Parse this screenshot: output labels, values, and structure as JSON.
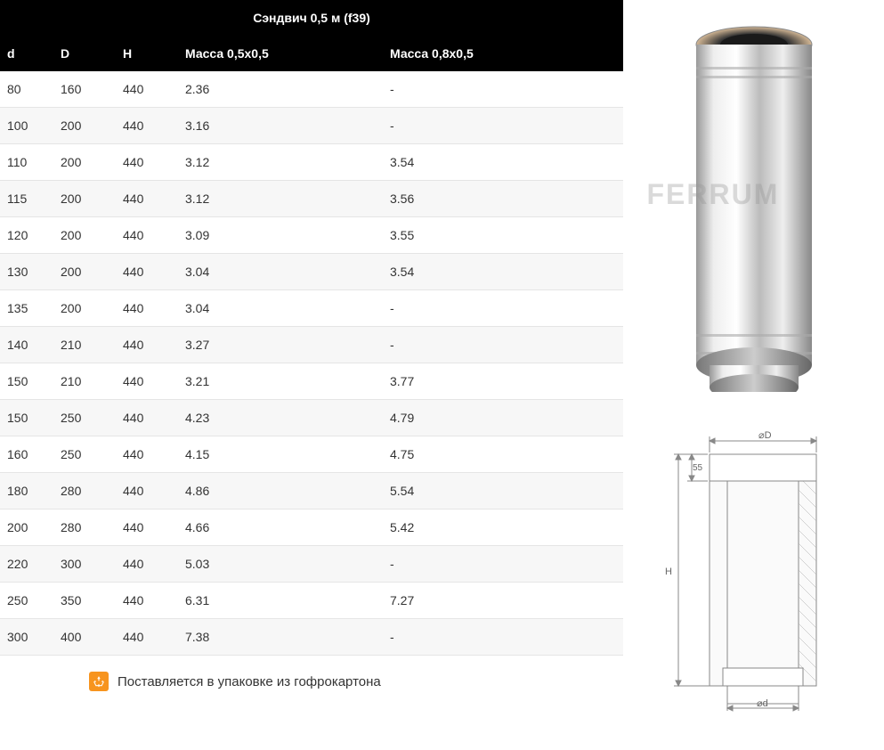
{
  "table": {
    "title": "Сэндвич 0,5 м (f39)",
    "columns": [
      "d",
      "D",
      "Н",
      "Масса 0,5x0,5",
      "Масса 0,8x0,5"
    ],
    "rows": [
      [
        "80",
        "160",
        "440",
        "2.36",
        "-"
      ],
      [
        "100",
        "200",
        "440",
        "3.16",
        "-"
      ],
      [
        "110",
        "200",
        "440",
        "3.12",
        "3.54"
      ],
      [
        "115",
        "200",
        "440",
        "3.12",
        "3.56"
      ],
      [
        "120",
        "200",
        "440",
        "3.09",
        "3.55"
      ],
      [
        "130",
        "200",
        "440",
        "3.04",
        "3.54"
      ],
      [
        "135",
        "200",
        "440",
        "3.04",
        "-"
      ],
      [
        "140",
        "210",
        "440",
        "3.27",
        "-"
      ],
      [
        "150",
        "210",
        "440",
        "3.21",
        "3.77"
      ],
      [
        "150",
        "250",
        "440",
        "4.23",
        "4.79"
      ],
      [
        "160",
        "250",
        "440",
        "4.15",
        "4.75"
      ],
      [
        "180",
        "280",
        "440",
        "4.86",
        "5.54"
      ],
      [
        "200",
        "280",
        "440",
        "4.66",
        "5.42"
      ],
      [
        "220",
        "300",
        "440",
        "5.03",
        "-"
      ],
      [
        "250",
        "350",
        "440",
        "6.31",
        "7.27"
      ],
      [
        "300",
        "400",
        "440",
        "7.38",
        "-"
      ]
    ],
    "footer_icon_color": "#f7941e",
    "footer_text": "Поставляется в упаковке из гофрокартона"
  },
  "styling": {
    "header_bg": "#000000",
    "header_fg": "#ffffff",
    "row_even_bg": "#f7f7f7",
    "row_odd_bg": "#ffffff",
    "border_color": "#e5e5e5",
    "text_color": "#333333",
    "font_size": 14
  },
  "product": {
    "watermark": "FERRUM",
    "watermark_color": "rgba(150,150,150,0.35)"
  },
  "schematic": {
    "label_D": "⌀D",
    "label_d": "⌀d",
    "label_H": "H",
    "label_55": "55",
    "line_color": "#888888"
  }
}
